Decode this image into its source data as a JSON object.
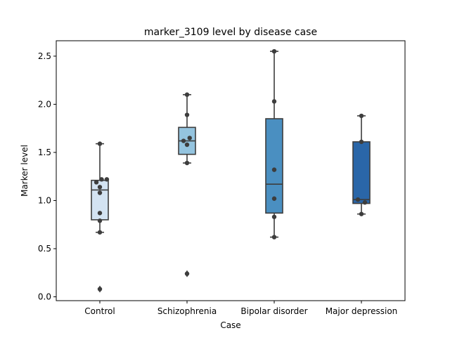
{
  "chart_data": {
    "type": "box",
    "title": "marker_3109 level by disease case",
    "xlabel": "Case",
    "ylabel": "Marker level",
    "ylim": [
      -0.04,
      2.66
    ],
    "yticks": [
      0.0,
      0.5,
      1.0,
      1.5,
      2.0,
      2.5
    ],
    "ytick_labels": [
      "0.0",
      "0.5",
      "1.0",
      "1.5",
      "2.0",
      "2.5"
    ],
    "grid": false,
    "legend": "none",
    "categories": [
      "Control",
      "Schizophrenia",
      "Bipolar disorder",
      "Major depression"
    ],
    "colors": [
      "#d3e3f2",
      "#94c4df",
      "#4a8fc1",
      "#2a66a8"
    ],
    "boxes": [
      {
        "category": "Control",
        "q1": 0.8,
        "median": 1.11,
        "q3": 1.21,
        "whisker_low": 0.67,
        "whisker_high": 1.59,
        "outliers": [
          0.08
        ]
      },
      {
        "category": "Schizophrenia",
        "q1": 1.48,
        "median": 1.62,
        "q3": 1.76,
        "whisker_low": 1.39,
        "whisker_high": 2.1,
        "outliers": [
          0.24
        ]
      },
      {
        "category": "Bipolar disorder",
        "q1": 0.87,
        "median": 1.17,
        "q3": 1.85,
        "whisker_low": 0.62,
        "whisker_high": 2.55,
        "outliers": []
      },
      {
        "category": "Major depression",
        "q1": 0.97,
        "median": 1.01,
        "q3": 1.61,
        "whisker_low": 0.86,
        "whisker_high": 1.88,
        "outliers": []
      }
    ],
    "points": [
      {
        "category": "Control",
        "values": [
          1.22,
          1.22,
          1.19,
          1.14,
          1.08,
          0.87,
          0.79,
          0.67,
          1.59,
          0.08
        ],
        "offsets": [
          0.08,
          0.02,
          -0.04,
          0.0,
          0.0,
          0.0,
          0.0,
          0.0,
          0.0,
          0.0
        ]
      },
      {
        "category": "Schizophrenia",
        "values": [
          2.1,
          1.89,
          1.65,
          1.62,
          1.58,
          1.39,
          0.24
        ],
        "offsets": [
          0.0,
          0.0,
          0.03,
          -0.04,
          0.0,
          0.0,
          0.0
        ]
      },
      {
        "category": "Bipolar disorder",
        "values": [
          2.55,
          2.03,
          1.32,
          1.02,
          0.83,
          0.62
        ],
        "offsets": [
          0.0,
          0.0,
          0.0,
          0.0,
          0.0,
          0.0
        ]
      },
      {
        "category": "Major depression",
        "values": [
          1.88,
          1.61,
          1.01,
          0.98,
          0.86
        ],
        "offsets": [
          0.0,
          0.0,
          -0.04,
          0.04,
          0.0
        ]
      }
    ]
  }
}
